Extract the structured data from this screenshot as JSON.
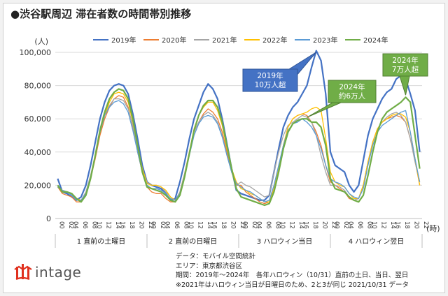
{
  "title": "●渋谷駅周辺 滞在者数の時間帯別推移",
  "logo_text": "intage",
  "notes": [
    "データ：モバイル空間統計",
    "エリア：東京都渋谷区",
    "期間：2019年～2024年　各年ハロウィン（10/31）直前の土日、当日、翌日",
    "※2021年はハロウィン当日が日曜日のため、2と3が同じ 2021/10/31 データ"
  ],
  "chart_data": {
    "type": "line",
    "ylabel": "(人)",
    "xlabel": "(時)",
    "ylim": [
      0,
      100000
    ],
    "yticks": [
      0,
      20000,
      40000,
      60000,
      80000,
      100000
    ],
    "ytick_labels": [
      "0",
      "20,000",
      "40,000",
      "60,000",
      "80,000",
      "100,000"
    ],
    "x_tick_labels": [
      "00",
      "02",
      "04",
      "06",
      "08",
      "10",
      "12",
      "14",
      "16",
      "18",
      "20",
      "22"
    ],
    "groups": [
      "1 直前の土曜日",
      "2 直前の日曜日",
      "3 ハロウィン当日",
      "4 ハロウィン翌日"
    ],
    "legend_position": "top",
    "series": [
      {
        "name": "2019年",
        "color": "#4472c4",
        "values": [
          24000,
          16000,
          15000,
          13000,
          11000,
          13000,
          20000,
          32000,
          46000,
          60000,
          70000,
          77000,
          80000,
          81000,
          80000,
          75000,
          63000,
          48000,
          32000,
          22000,
          20000,
          19000,
          18000,
          15000,
          11000,
          12000,
          22000,
          34000,
          48000,
          60000,
          68000,
          76000,
          81000,
          78000,
          72000,
          60000,
          45000,
          30000,
          17000,
          15000,
          14000,
          13000,
          12000,
          11000,
          11000,
          14000,
          28000,
          42000,
          55000,
          62000,
          67000,
          70000,
          75000,
          80000,
          91000,
          101000,
          95000,
          75000,
          40000,
          32000,
          30000,
          28000,
          20000,
          16000,
          20000,
          35000,
          50000,
          60000,
          66000,
          72000,
          76000,
          78000,
          84000,
          86000,
          84000,
          75000,
          65000,
          40000
        ]
      },
      {
        "name": "2020年",
        "color": "#ed7d31",
        "values": [
          19000,
          15000,
          14000,
          13000,
          10000,
          10000,
          14000,
          24000,
          36000,
          50000,
          60000,
          67000,
          72000,
          74000,
          73000,
          67000,
          55000,
          40000,
          28000,
          19000,
          16000,
          15000,
          15000,
          12000,
          10000,
          10000,
          16000,
          27000,
          40000,
          52000,
          58000,
          63000,
          66000,
          64000,
          60000,
          52000,
          40000,
          28000,
          20000,
          20000,
          16000,
          14000,
          12000,
          10000,
          9000,
          10000,
          18000,
          30000,
          44000,
          55000,
          60000,
          62000,
          63000,
          62000,
          58000,
          52000,
          44000,
          32000,
          22000,
          20000,
          18000,
          16000,
          12000,
          11000,
          12000,
          20000,
          34000,
          46000,
          54000,
          58000,
          60000,
          61000,
          62000,
          61000,
          58000,
          48000,
          35000,
          20000
        ]
      },
      {
        "name": "2021年",
        "color": "#a5a5a5",
        "values": [
          19000,
          17000,
          16000,
          14000,
          12000,
          11000,
          16000,
          26000,
          38000,
          52000,
          62000,
          68000,
          72000,
          72000,
          71000,
          66000,
          56000,
          42000,
          30000,
          22000,
          20000,
          20000,
          19000,
          16000,
          13000,
          11000,
          16000,
          27000,
          40000,
          52000,
          58000,
          62000,
          64000,
          62000,
          58000,
          50000,
          38000,
          28000,
          20000,
          22000,
          20000,
          19000,
          17000,
          15000,
          13000,
          14000,
          28000,
          40000,
          50000,
          56000,
          58000,
          60000,
          62000,
          61000,
          58000,
          50000,
          38000,
          28000,
          20000,
          20000,
          19000,
          17000,
          13000,
          11000,
          12000,
          20000,
          34000,
          46000,
          54000,
          58000,
          61000,
          63000,
          64000,
          62000,
          58000,
          48000,
          34000,
          22000
        ]
      },
      {
        "name": "2022年",
        "color": "#ffc000",
        "values": [
          19000,
          17000,
          16000,
          15000,
          12000,
          11000,
          15000,
          25000,
          38000,
          52000,
          62000,
          70000,
          75000,
          76000,
          75000,
          70000,
          58000,
          44000,
          30000,
          21000,
          20000,
          20000,
          19000,
          17000,
          13000,
          11000,
          15000,
          26000,
          40000,
          54000,
          62000,
          67000,
          70000,
          70000,
          65000,
          56000,
          42000,
          30000,
          22000,
          18000,
          17000,
          15000,
          14000,
          12000,
          10000,
          10000,
          18000,
          30000,
          44000,
          55000,
          60000,
          62000,
          63000,
          64000,
          66000,
          67000,
          65000,
          48000,
          28000,
          22000,
          20000,
          19000,
          15000,
          12000,
          12000,
          20000,
          34000,
          46000,
          54000,
          58000,
          60000,
          62000,
          63000,
          63000,
          61000,
          52000,
          36000,
          20000
        ]
      },
      {
        "name": "2023年",
        "color": "#5b9bd5",
        "values": [
          19000,
          17000,
          16000,
          14000,
          11000,
          11000,
          15000,
          25000,
          38000,
          52000,
          62000,
          67000,
          70000,
          71000,
          69000,
          64000,
          53000,
          40000,
          28000,
          20000,
          18000,
          18000,
          17000,
          15000,
          12000,
          11000,
          15000,
          26000,
          38000,
          50000,
          57000,
          61000,
          62000,
          61000,
          57000,
          49000,
          38000,
          28000,
          21000,
          19000,
          17000,
          16000,
          14000,
          12000,
          10000,
          11000,
          20000,
          32000,
          44000,
          53000,
          57000,
          58000,
          60000,
          58000,
          55000,
          50000,
          42000,
          32000,
          24000,
          22000,
          21000,
          19000,
          15000,
          13000,
          12000,
          18000,
          32000,
          44000,
          52000,
          56000,
          58000,
          60000,
          62000,
          64000,
          65000,
          52000,
          36000,
          22000
        ]
      },
      {
        "name": "2024年",
        "color": "#70ad47",
        "values": [
          20000,
          16000,
          16000,
          15000,
          12000,
          10000,
          14000,
          24000,
          38000,
          53000,
          64000,
          72000,
          76000,
          78000,
          77000,
          72000,
          60000,
          44000,
          28000,
          19000,
          18000,
          17000,
          16000,
          14000,
          11000,
          10000,
          14000,
          25000,
          39000,
          53000,
          62000,
          68000,
          71000,
          71000,
          67000,
          58000,
          44000,
          30000,
          18000,
          13000,
          12000,
          11000,
          10000,
          9000,
          8000,
          9000,
          16000,
          28000,
          42000,
          52000,
          57000,
          59000,
          60000,
          60000,
          58000,
          58000,
          55000,
          44000,
          24000,
          18000,
          17000,
          16000,
          13000,
          11000,
          10000,
          14000,
          26000,
          40000,
          52000,
          60000,
          64000,
          66000,
          68000,
          70000,
          73000,
          70000,
          50000,
          30000
        ]
      }
    ],
    "annotations": [
      {
        "text": [
          "2019年",
          "10万人超"
        ],
        "style": "blue-box",
        "series": "2019年"
      },
      {
        "text": [
          "2024年",
          "約6万人"
        ],
        "style": "green-box",
        "series": "2024年"
      },
      {
        "text": [
          "2024年",
          "7万人超"
        ],
        "style": "green-box",
        "series": "2024年"
      }
    ]
  }
}
